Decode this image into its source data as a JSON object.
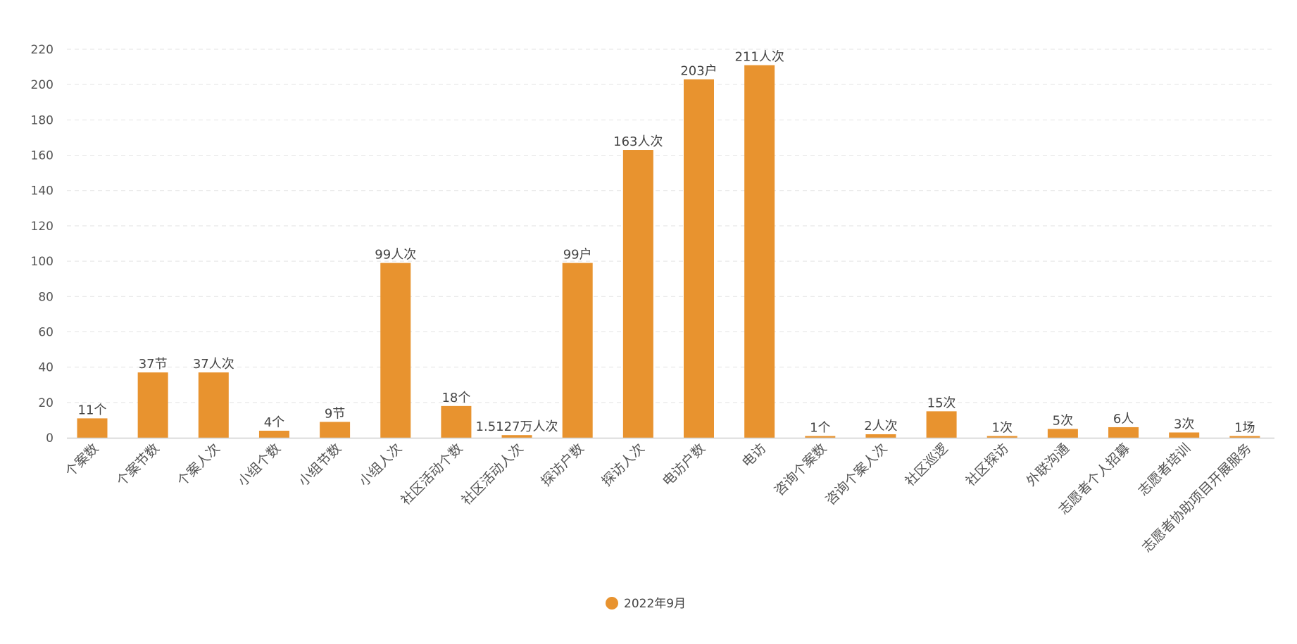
{
  "chart_data": {
    "type": "bar",
    "categories": [
      "个案数",
      "个案节数",
      "个案人次",
      "小组个数",
      "小组节数",
      "小组人次",
      "社区活动个数",
      "社区活动人次",
      "探访户数",
      "探访人次",
      "电访户数",
      "电访",
      "咨询个案数",
      "咨询个案人次",
      "社区巡逻",
      "社区探访",
      "外联沟通",
      "志愿者个人招募",
      "志愿者培训",
      "志愿者协助项目开展服务"
    ],
    "series": [
      {
        "name": "2022年9月",
        "color": "#E8932F",
        "values": [
          11,
          37,
          37,
          4,
          9,
          99,
          18,
          1.5127,
          99,
          163,
          203,
          211,
          1,
          2,
          15,
          1,
          5,
          6,
          3,
          1
        ],
        "labels": [
          "11个",
          "37节",
          "37人次",
          "4个",
          "9节",
          "99人次",
          "18个",
          "1.5127万人次",
          "99户",
          "163人次",
          "203户",
          "211人次",
          "1个",
          "2人次",
          "15次",
          "1次",
          "5次",
          "6人",
          "3次",
          "1场"
        ]
      }
    ],
    "yticks": [
      "0",
      "20",
      "40",
      "60",
      "80",
      "100",
      "120",
      "140",
      "160",
      "180",
      "200",
      "220"
    ],
    "ylim": [
      0,
      220
    ],
    "grid": true,
    "legend_position": "bottom-center"
  }
}
